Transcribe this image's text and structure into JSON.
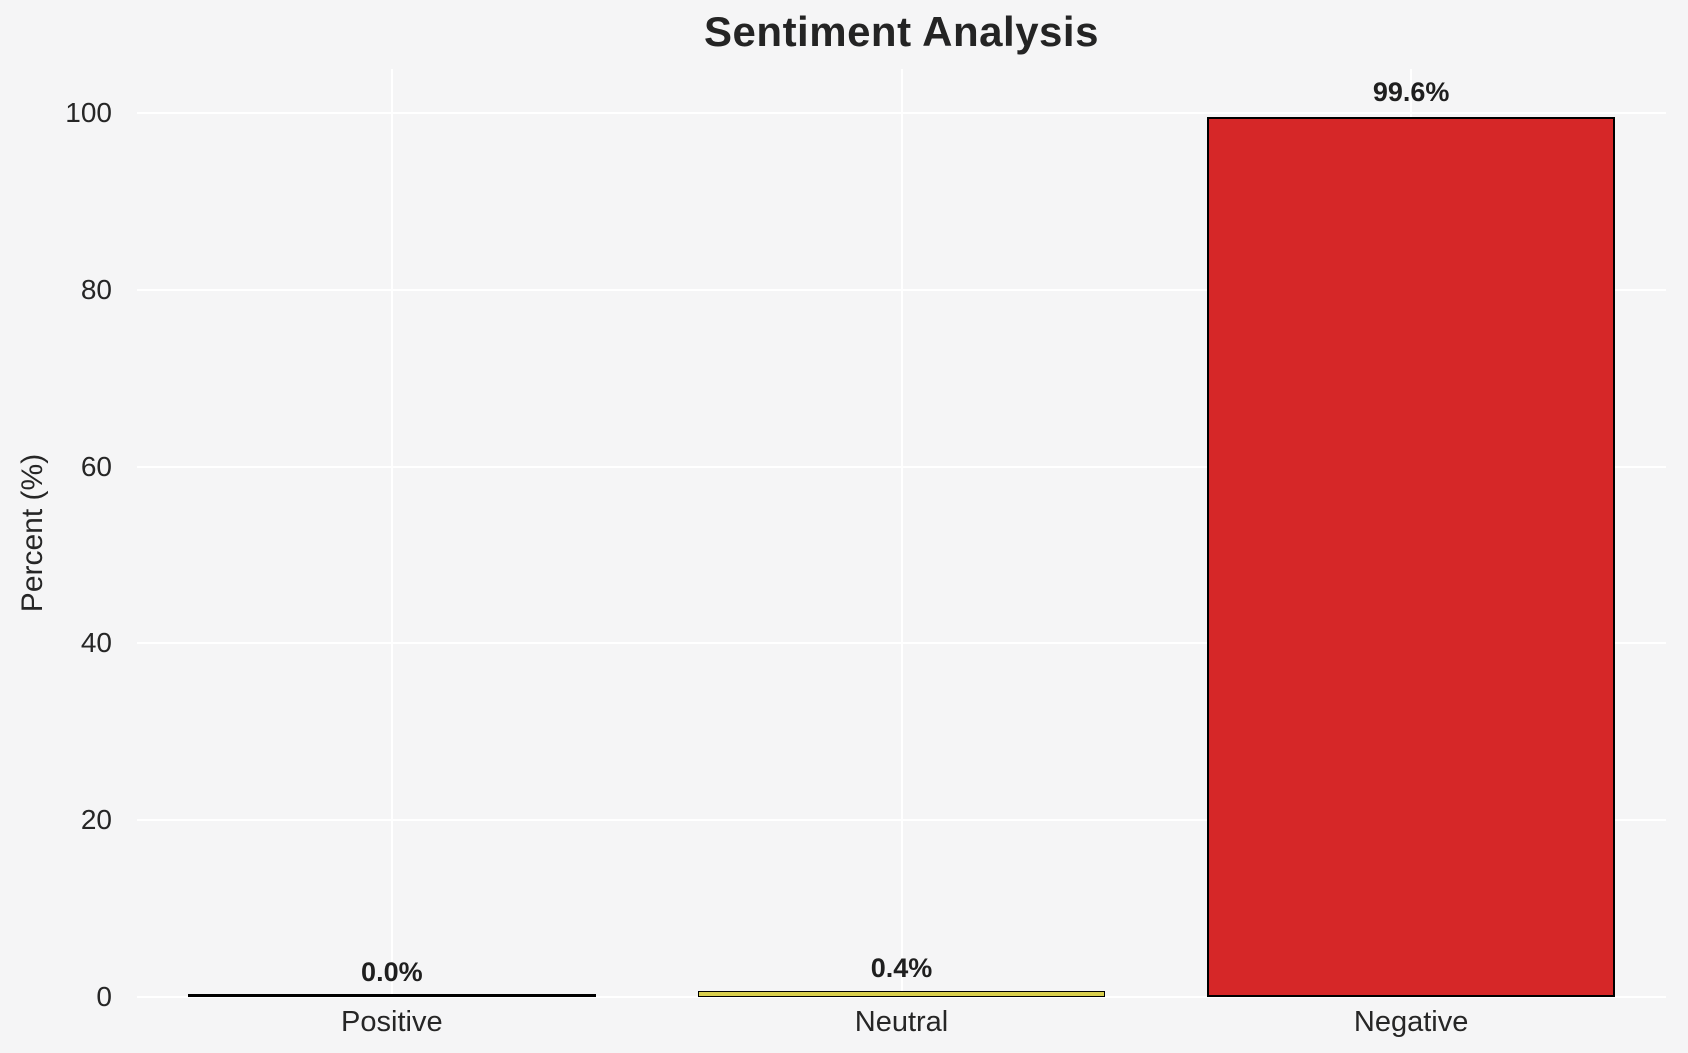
{
  "colors": {
    "background": "#f5f5f6",
    "grid": "#ffffff",
    "text": "#262626",
    "title_text": "#242424",
    "bar_edge": "#000000",
    "neutral_fill": "#d9cf4e",
    "negative_fill": "#d62728"
  },
  "chart_data": {
    "type": "bar",
    "title": "Sentiment Analysis",
    "xlabel": "",
    "ylabel": "Percent (%)",
    "categories": [
      "Positive",
      "Neutral",
      "Negative"
    ],
    "values": [
      0.0,
      0.4,
      99.6
    ],
    "value_labels": [
      "0.0%",
      "0.4%",
      "99.6%"
    ],
    "bar_fills": [
      null,
      "#d9cf4e",
      "#d62728"
    ],
    "bar_edge_color": "#000000",
    "bar_width_fraction": 0.8,
    "yticks": [
      0,
      20,
      40,
      60,
      80,
      100
    ],
    "ylim": [
      0,
      105
    ],
    "grid": {
      "horizontal": true,
      "vertical": true,
      "color": "#ffffff"
    },
    "legend": "none"
  }
}
